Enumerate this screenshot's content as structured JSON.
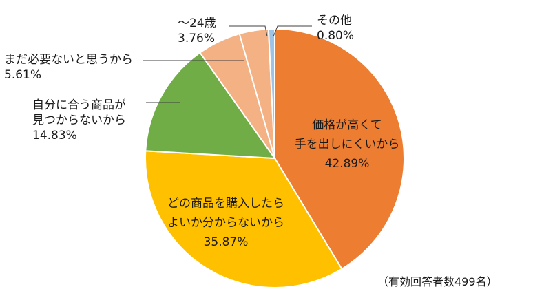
{
  "chart_data": {
    "type": "pie",
    "slices": [
      {
        "label": [
          "価格が高くて",
          "手を出しにくいから"
        ],
        "value": 42.89,
        "value_text": "42.89%",
        "color": "#ED7D31"
      },
      {
        "label": [
          "どの商品を購入したら",
          "よいか分からないから"
        ],
        "value": 35.87,
        "value_text": "35.87%",
        "color": "#FFC000"
      },
      {
        "label": [
          "自分に合う商品が",
          "見つからないから"
        ],
        "value": 14.83,
        "value_text": "14.83%",
        "color": "#70AD47"
      },
      {
        "label": [
          "まだ必要ないと思うから"
        ],
        "value": 5.61,
        "value_text": "5.61%",
        "color": "#F4B183"
      },
      {
        "label": [
          "～24歳"
        ],
        "value": 3.76,
        "value_text": "3.76%",
        "color": "#F4B183"
      },
      {
        "label": [
          "その他"
        ],
        "value": 0.8,
        "value_text": "0.80%",
        "color": "#9DC3E6"
      }
    ],
    "note": "（有効回答者数499名）"
  }
}
